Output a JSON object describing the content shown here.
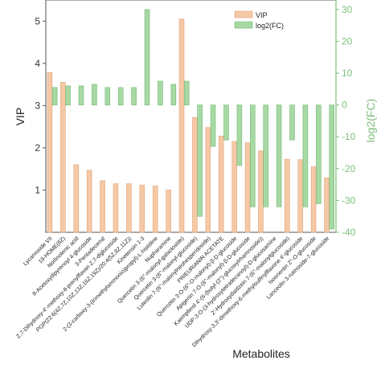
{
  "chart_data": {
    "type": "bar",
    "xlabel": "Metabolites",
    "ylabel_left": "VIP",
    "ylabel_right": "log2(FC)",
    "ylim_left": [
      0,
      5.5
    ],
    "ylim_right": [
      -40,
      33
    ],
    "yticks_left": [
      1,
      2,
      3,
      4,
      5
    ],
    "yticks_right": [
      -40,
      -30,
      -20,
      -10,
      0,
      10,
      20,
      30
    ],
    "legend_position": "top-right",
    "categories": [
      "Lycamoside VII",
      "19-HOME(8Z)",
      "Norlinolenic acid",
      "8-Acetoxydipyrenoyl 4-glucoside",
      "3-Pentadecenal",
      "Z,7-Dihydroxy-4'-methoxy-8-prenylflavan Z,7-diglucoside",
      "PGP(22:6(4Z,7Z,10Z,13Z,16Z,19Z)/20:4(5Z,8Z,11Z))",
      "Kinetensin 1-3",
      "2-(3-carboxy-3-(trimethylammonio)propyl)-L-histidine",
      "Nupharamine",
      "Quercetin 3-(6''-malonyl-galactoside)",
      "Quercetin 3-(6''-malonyl-glucoside)",
      "Luteolin 7-(6''-malonylneohesperidoside)",
      "PRIEURIANIN ACETATE",
      "Quercetin 3-O-(6''-O-malonyl)-β-D-glucoside",
      "Apigenin 7-O-(6''-malonyl)-β-D-glucoside",
      "Kaempferol 4'-(6-(butyl-(2'')-glucosylrhamnoside))",
      "UDP-3-O-(3-hydroxytetradecanoyl)-D-glucosamine",
      "2'-Hydroxydaidzein 7-(6''-malonylglucoside)",
      "Dihydroxy-3,3'-dimethoxy-6-methylsulfinylflavone 4'-glucoside",
      "Isoorientin 2''-O-glucoside",
      "Lanceolin 3-rutinoside-7-glucoside"
    ],
    "series": [
      {
        "name": "VIP",
        "color": "#f5c8a6",
        "edge": "#e0a47a",
        "values": [
          3.78,
          3.55,
          1.6,
          1.47,
          1.22,
          1.15,
          1.15,
          1.12,
          1.1,
          1.0,
          5.05,
          2.72,
          2.48,
          2.28,
          2.15,
          2.12,
          1.93,
          null,
          1.73,
          1.72,
          1.55,
          1.29
        ]
      },
      {
        "name": "log2(FC)",
        "color": "#a6d9a3",
        "edge": "#75b872",
        "values": [
          5.5,
          6.0,
          6.0,
          6.5,
          5.5,
          5.5,
          5.5,
          30,
          7.5,
          6.5,
          7.5,
          -35,
          -13,
          -11,
          -19,
          -32,
          -32,
          -32,
          -11,
          -32,
          -31,
          -39
        ]
      }
    ]
  }
}
